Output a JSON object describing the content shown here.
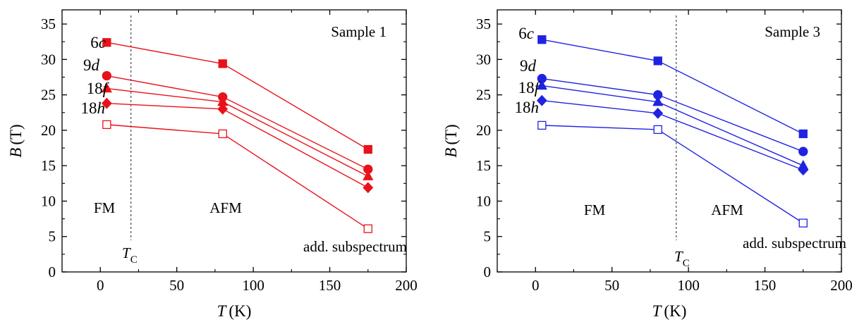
{
  "chart_data": [
    {
      "type": "line",
      "annotation": "Sample 1",
      "xlabel": {
        "var": "T",
        "unit": "(K)"
      },
      "ylabel": {
        "var": "B",
        "unit": "(T)"
      },
      "xlim": [
        -25,
        200
      ],
      "ylim": [
        0,
        37
      ],
      "xticks": [
        0,
        50,
        100,
        150,
        200
      ],
      "yticks": [
        0,
        5,
        10,
        15,
        20,
        25,
        30,
        35
      ],
      "grid": false,
      "color": "#e8121a",
      "x": [
        4.2,
        80,
        175
      ],
      "series": [
        {
          "name": "6c",
          "var": "c",
          "num": "6",
          "marker": "square",
          "filled": true,
          "values": [
            32.4,
            29.4,
            17.3
          ]
        },
        {
          "name": "9d",
          "var": "d",
          "num": "9",
          "marker": "circle",
          "filled": true,
          "values": [
            27.7,
            24.7,
            14.5
          ]
        },
        {
          "name": "18f",
          "var": "f",
          "num": "18",
          "marker": "triangle",
          "filled": true,
          "values": [
            25.9,
            24.0,
            13.5
          ]
        },
        {
          "name": "18h",
          "var": "h",
          "num": "18",
          "marker": "diamond",
          "filled": true,
          "values": [
            23.8,
            23.0,
            11.9
          ]
        },
        {
          "name": "add. subspectrum",
          "marker": "square",
          "filled": false,
          "values": [
            20.8,
            19.5,
            6.1
          ]
        }
      ],
      "regions": {
        "left": "FM",
        "right": "AFM"
      },
      "tc_line_x": 20,
      "tc_label": {
        "var": "T",
        "sub": "C"
      },
      "add_label": "add. subspectrum"
    },
    {
      "type": "line",
      "annotation": "Sample 3",
      "xlabel": {
        "var": "T",
        "unit": "(K)"
      },
      "ylabel": {
        "var": "B",
        "unit": "(T)"
      },
      "xlim": [
        -25,
        200
      ],
      "ylim": [
        0,
        37
      ],
      "xticks": [
        0,
        50,
        100,
        150,
        200
      ],
      "yticks": [
        0,
        5,
        10,
        15,
        20,
        25,
        30,
        35
      ],
      "grid": false,
      "color": "#1f23e0",
      "x": [
        4.2,
        80,
        175
      ],
      "series": [
        {
          "name": "6c",
          "var": "c",
          "num": "6",
          "marker": "square",
          "filled": true,
          "values": [
            32.8,
            29.8,
            19.5
          ]
        },
        {
          "name": "9d",
          "var": "d",
          "num": "9",
          "marker": "circle",
          "filled": true,
          "values": [
            27.3,
            25.0,
            17.0
          ]
        },
        {
          "name": "18f",
          "var": "f",
          "num": "18",
          "marker": "triangle",
          "filled": true,
          "values": [
            26.3,
            24.0,
            15.0
          ]
        },
        {
          "name": "18h",
          "var": "h",
          "num": "18",
          "marker": "diamond",
          "filled": true,
          "values": [
            24.2,
            22.4,
            14.4
          ]
        },
        {
          "name": "add. subspectrum",
          "marker": "square",
          "filled": false,
          "values": [
            20.7,
            20.1,
            6.9
          ]
        }
      ],
      "regions": {
        "left": "FM",
        "right": "AFM"
      },
      "tc_line_x": 92,
      "tc_label": {
        "var": "T",
        "sub": "C"
      },
      "add_label": "add. subspectrum"
    }
  ]
}
